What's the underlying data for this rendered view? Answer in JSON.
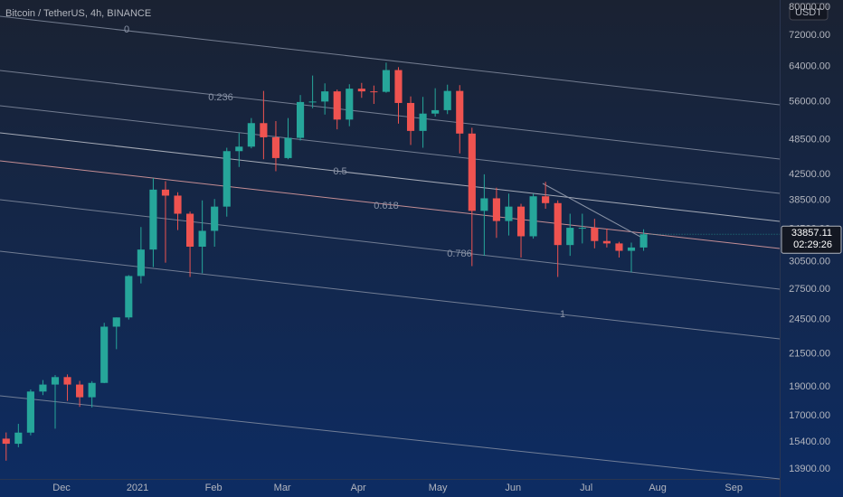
{
  "chart_data": {
    "type": "candlestick",
    "title": "Bitcoin / TetherUS, 4h, BINANCE",
    "currency": "USDT",
    "countdown": "02:29:26",
    "log_scale": true,
    "grid": false,
    "up_color": "#26a69a",
    "down_color": "#ef5350",
    "categories": [
      null,
      null,
      null,
      null,
      null,
      null,
      null,
      null,
      null,
      null,
      null,
      null,
      null,
      null,
      null,
      null,
      null,
      null,
      null,
      null,
      null,
      null,
      null,
      null,
      null,
      null,
      null,
      null,
      null,
      null,
      null,
      null,
      null,
      null,
      null,
      null,
      null,
      null,
      null,
      null,
      null,
      null,
      null,
      null,
      null,
      null,
      null,
      null,
      null,
      null,
      null,
      null,
      null
    ],
    "open": [
      15600,
      15300,
      15960,
      18650,
      19150,
      19700,
      19150,
      18250,
      19270,
      23850,
      24700,
      28900,
      31950,
      40100,
      39200,
      36600,
      32300,
      34300,
      37600,
      46400,
      47200,
      51600,
      48900,
      45200,
      48800,
      55900,
      56000,
      58200,
      52300,
      58800,
      58200,
      58100,
      63100,
      55700,
      50100,
      53500,
      54200,
      58300,
      49600,
      37000,
      38800,
      35600,
      37600,
      33600,
      39100,
      38100,
      32500,
      34700,
      34700,
      33000,
      32700,
      31800,
      32200
    ],
    "high": [
      15970,
      16500,
      18800,
      19480,
      19850,
      19900,
      19420,
      19400,
      24200,
      24700,
      29000,
      34800,
      41900,
      41400,
      39700,
      36900,
      38500,
      38700,
      47000,
      49700,
      52600,
      58300,
      52000,
      52600,
      57400,
      61800,
      60000,
      58600,
      59800,
      60100,
      59500,
      64900,
      63800,
      57100,
      57000,
      58900,
      59700,
      59600,
      50700,
      42500,
      40400,
      39500,
      38000,
      39500,
      41300,
      38500,
      36600,
      36600,
      35900,
      34600,
      32900,
      32800,
      34500
    ],
    "low": [
      14350,
      15100,
      15800,
      18400,
      16200,
      18000,
      17600,
      17560,
      19250,
      21900,
      24500,
      28100,
      29900,
      30400,
      34400,
      28800,
      29200,
      32300,
      36200,
      43700,
      46900,
      45000,
      43000,
      45000,
      48300,
      54600,
      53300,
      50400,
      51000,
      56800,
      55500,
      57900,
      51500,
      47500,
      47000,
      52900,
      53400,
      46000,
      30000,
      31200,
      33400,
      33700,
      31000,
      33300,
      37300,
      28800,
      31200,
      32700,
      32100,
      32200,
      31000,
      29300,
      31800
    ],
    "close": [
      15300,
      15960,
      18650,
      19150,
      19700,
      19150,
      18250,
      19270,
      23850,
      24700,
      28900,
      31950,
      40100,
      39200,
      36600,
      32300,
      34300,
      37600,
      46400,
      47200,
      51600,
      48900,
      45200,
      48800,
      55900,
      56000,
      58200,
      52300,
      58800,
      58200,
      58100,
      63100,
      55700,
      50100,
      53500,
      54200,
      58300,
      49600,
      37000,
      38800,
      35600,
      37600,
      33600,
      39100,
      38100,
      32500,
      34700,
      34700,
      33000,
      32700,
      31800,
      32200,
      33857.11
    ],
    "ylim": [
      13390,
      82300
    ],
    "yticks": [
      {
        "value": 13900,
        "label": "13900.00"
      },
      {
        "value": 15400,
        "label": "15400.00"
      },
      {
        "value": 17000,
        "label": "17000.00"
      },
      {
        "value": 19000,
        "label": "19000.00"
      },
      {
        "value": 21500,
        "label": "21500.00"
      },
      {
        "value": 24500,
        "label": "24500.00"
      },
      {
        "value": 27500,
        "label": "27500.00"
      },
      {
        "value": 30500,
        "label": "30500.00"
      },
      {
        "value": 34500,
        "label": "34500.00"
      },
      {
        "value": 38500,
        "label": "38500.00"
      },
      {
        "value": 42500,
        "label": "42500.00"
      },
      {
        "value": 48500,
        "label": "48500.00"
      },
      {
        "value": 56000,
        "label": "56000.00"
      },
      {
        "value": 64000,
        "label": "64000.00"
      },
      {
        "value": 72000,
        "label": "72000.00"
      },
      {
        "value": 80000,
        "label": "80000.00"
      }
    ],
    "xlim": [
      -0.5,
      63.1
    ],
    "xticks": [
      {
        "value": 4.52,
        "label": "Dec"
      },
      {
        "value": 10.72,
        "label": "2021"
      },
      {
        "value": 16.92,
        "label": "Feb"
      },
      {
        "value": 22.53,
        "label": "Mar"
      },
      {
        "value": 28.73,
        "label": "Apr"
      },
      {
        "value": 35.22,
        "label": "May"
      },
      {
        "value": 41.35,
        "label": "Jun"
      },
      {
        "value": 47.32,
        "label": "Jul"
      },
      {
        "value": 53.15,
        "label": "Aug"
      },
      {
        "value": 59.35,
        "label": "Sep"
      }
    ],
    "fib_levels": [
      0,
      0.236,
      0.5,
      0.618,
      0.786,
      1
    ]
  }
}
